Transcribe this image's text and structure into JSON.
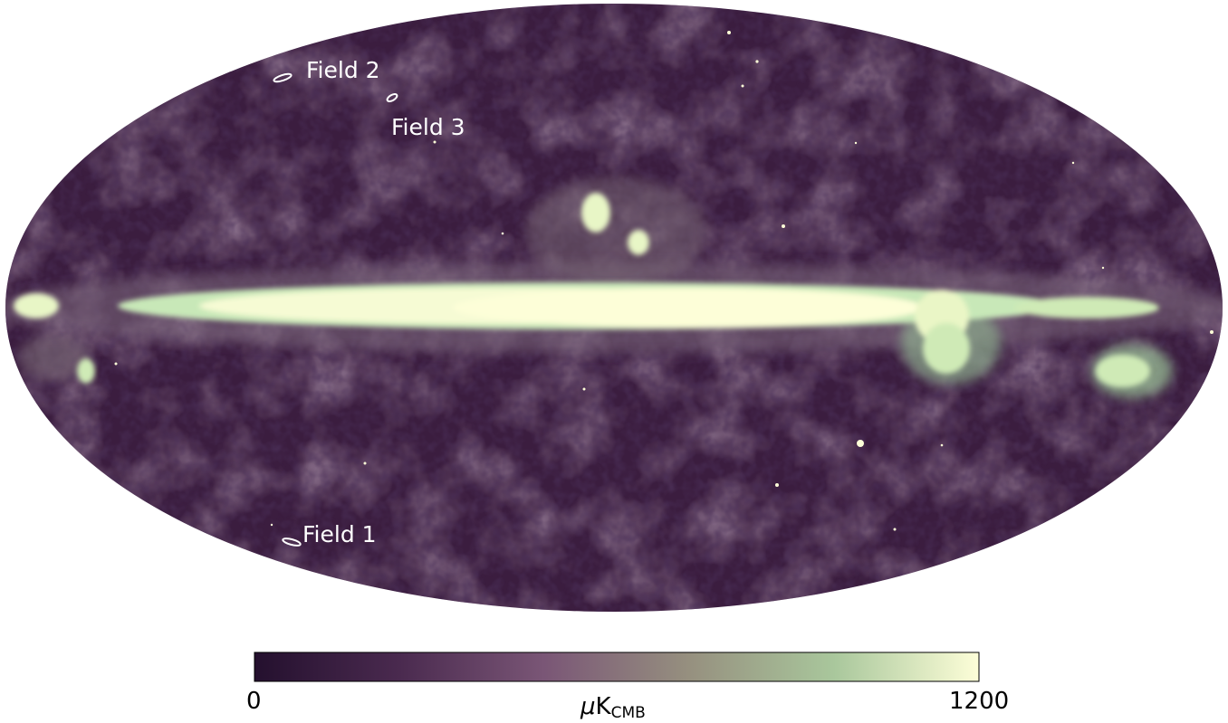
{
  "map": {
    "projection": "mollweide",
    "fields": [
      {
        "label": "Field 1"
      },
      {
        "label": "Field 2"
      },
      {
        "label": "Field 3"
      }
    ]
  },
  "colorbar": {
    "min": "0",
    "max": "1200",
    "unit_symbol": "μ",
    "unit_main": "K",
    "unit_sub": "CMB",
    "colors": [
      "#24102e",
      "#4a2a4f",
      "#7a5676",
      "#96907f",
      "#a9c79c",
      "#fdfed8"
    ]
  }
}
